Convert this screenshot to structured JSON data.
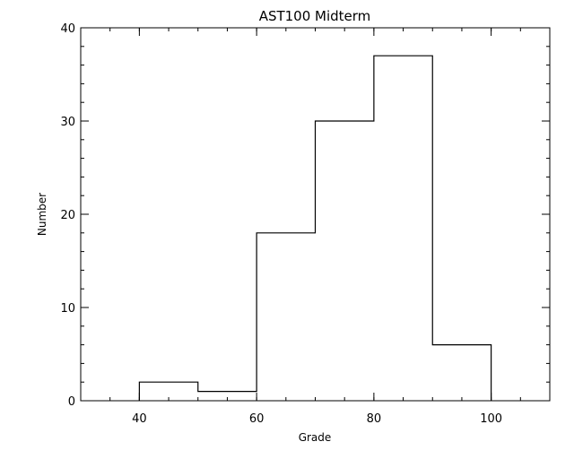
{
  "chart_data": {
    "type": "histogram",
    "title": "AST100 Midterm",
    "xlabel": "Grade",
    "ylabel": "Number",
    "xlim": [
      30,
      110
    ],
    "ylim": [
      0,
      40
    ],
    "bins": [
      {
        "x0": 40,
        "x1": 50,
        "count": 2
      },
      {
        "x0": 50,
        "x1": 60,
        "count": 1
      },
      {
        "x0": 60,
        "x1": 70,
        "count": 18
      },
      {
        "x0": 70,
        "x1": 80,
        "count": 30
      },
      {
        "x0": 80,
        "x1": 90,
        "count": 37
      },
      {
        "x0": 90,
        "x1": 100,
        "count": 6
      }
    ],
    "xticks": [
      40,
      60,
      80,
      100
    ],
    "xtick_labels": [
      "40",
      "60",
      "80",
      "100"
    ],
    "xminor": [
      30,
      35,
      40,
      45,
      50,
      55,
      60,
      65,
      70,
      75,
      80,
      85,
      90,
      95,
      100,
      105,
      110
    ],
    "yticks": [
      0,
      10,
      20,
      30,
      40
    ],
    "ytick_labels": [
      "0",
      "10",
      "20",
      "30",
      "40"
    ],
    "yminor": [
      0,
      2,
      4,
      6,
      8,
      10,
      12,
      14,
      16,
      18,
      20,
      22,
      24,
      26,
      28,
      30,
      32,
      34,
      36,
      38,
      40
    ],
    "grid": false
  }
}
